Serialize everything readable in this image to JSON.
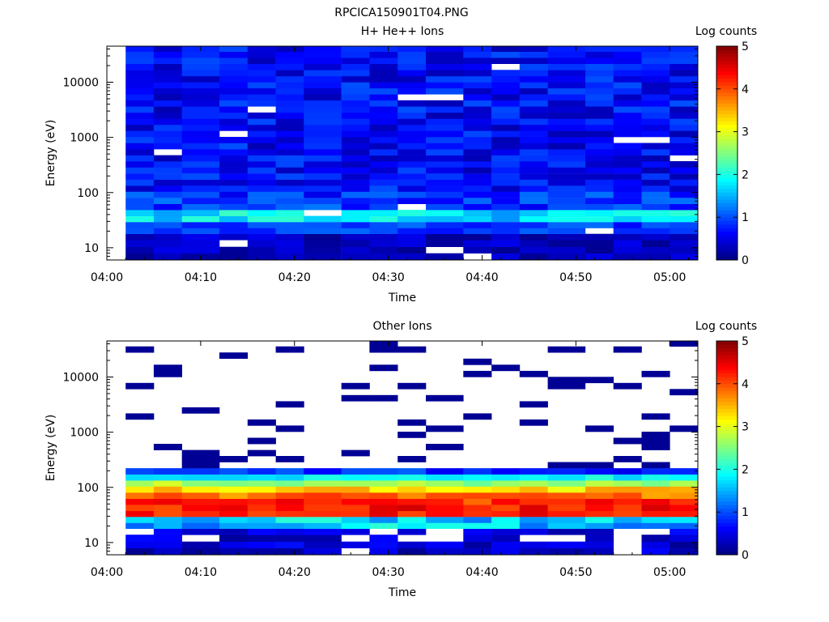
{
  "figure_title": "RPCICA150901T04.PNG",
  "chart_data": [
    {
      "type": "heatmap",
      "title": "H+ He++ Ions",
      "xlabel": "Time",
      "ylabel": "Energy (eV)",
      "y_scale": "log",
      "ylim": [
        6,
        45000
      ],
      "xlim": [
        "04:00",
        "05:03"
      ],
      "x_ticks": [
        "04:00",
        "04:10",
        "04:20",
        "04:30",
        "04:40",
        "04:50",
        "05:00"
      ],
      "y_ticks": [
        "10",
        "100",
        "1000",
        "10000"
      ],
      "colorbar": {
        "label": "Log counts",
        "range": [
          0,
          5
        ],
        "ticks": [
          "0",
          "1",
          "2",
          "3",
          "4",
          "5"
        ],
        "colormap": "jet"
      },
      "scan_start_times": [
        "04:02",
        "04:05",
        "04:08",
        "04:12",
        "04:15",
        "04:18",
        "04:21",
        "04:25",
        "04:28",
        "04:31",
        "04:34",
        "04:38",
        "04:41",
        "04:44",
        "04:47",
        "04:51",
        "04:54",
        "04:57",
        "05:00"
      ],
      "energy_bins_ev": [
        7,
        9,
        12,
        16,
        20,
        26,
        33,
        43,
        55,
        71,
        92,
        118,
        152,
        196,
        253,
        326,
        420,
        540,
        700,
        900,
        1160,
        1500,
        1930,
        2490,
        3210,
        4140,
        5340,
        6880,
        8870,
        11400,
        14700,
        19000,
        24500,
        31600,
        40700
      ],
      "typical_log_counts": {
        "below_20_ev": 0.3,
        "20_to_33_ev": 0.9,
        "33_to_55_ev": 1.8,
        "55_to_118_ev": 0.9,
        "above_118_ev": 0.7
      }
    },
    {
      "type": "heatmap",
      "title": "Other Ions",
      "xlabel": "Time",
      "ylabel": "Energy (eV)",
      "y_scale": "log",
      "ylim": [
        6,
        45000
      ],
      "xlim": [
        "04:00",
        "05:03"
      ],
      "x_ticks": [
        "04:00",
        "04:10",
        "04:20",
        "04:30",
        "04:40",
        "04:50",
        "05:00"
      ],
      "y_ticks": [
        "10",
        "100",
        "1000",
        "10000"
      ],
      "colorbar": {
        "label": "Log counts",
        "range": [
          0,
          5
        ],
        "ticks": [
          "0",
          "1",
          "2",
          "3",
          "4",
          "5"
        ],
        "colormap": "jet"
      },
      "scan_start_times": [
        "04:02",
        "04:05",
        "04:08",
        "04:12",
        "04:15",
        "04:18",
        "04:21",
        "04:25",
        "04:28",
        "04:31",
        "04:34",
        "04:38",
        "04:41",
        "04:44",
        "04:47",
        "04:51",
        "04:54",
        "04:57",
        "05:00"
      ],
      "peak_energy_ev": 40,
      "peak_log_counts": 4.3,
      "upper_edge_ev": 200,
      "sparse_high_energy_log_counts": 0.1
    }
  ]
}
